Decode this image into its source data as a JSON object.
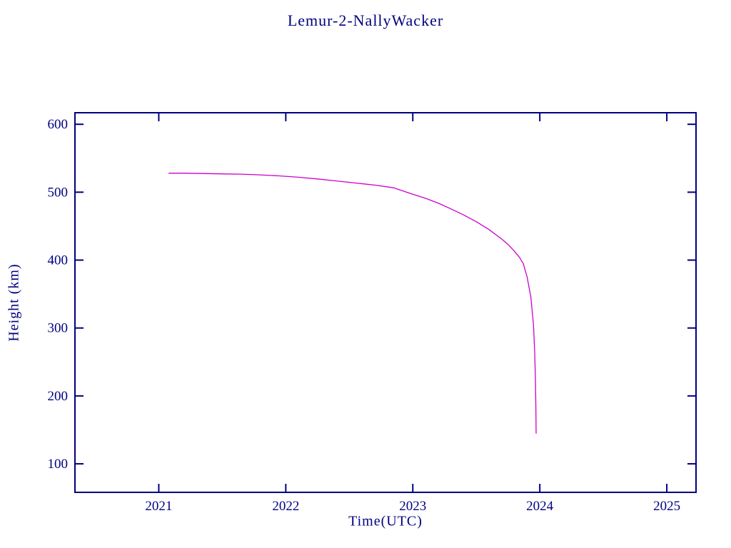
{
  "page": {
    "background_color": "#ffffff"
  },
  "chart_data": {
    "type": "line",
    "title": "Lemur-2-NallyWacker",
    "xlabel": "Time(UTC)",
    "ylabel": "Height (km)",
    "xlim": [
      2020.34,
      2025.23
    ],
    "ylim": [
      58,
      617
    ],
    "xticks": [
      2021,
      2022,
      2023,
      2024,
      2025
    ],
    "yticks": [
      100,
      200,
      300,
      400,
      500,
      600
    ],
    "grid": false,
    "legend": "none",
    "axis_color": "#000080",
    "line_color": "#cc00cc",
    "series": [
      {
        "name": "height_km",
        "x": [
          2021.08,
          2021.2,
          2021.35,
          2021.5,
          2021.65,
          2021.8,
          2021.95,
          2022.1,
          2022.25,
          2022.4,
          2022.55,
          2022.7,
          2022.85,
          2023.0,
          2023.1,
          2023.2,
          2023.3,
          2023.4,
          2023.5,
          2023.6,
          2023.7,
          2023.75,
          2023.8,
          2023.84,
          2023.87,
          2023.9,
          2023.93,
          2023.95,
          2023.96,
          2023.966,
          2023.969,
          2023.971
        ],
        "y": [
          528,
          528,
          527.5,
          527,
          526.5,
          525.5,
          524,
          522,
          519.5,
          516.5,
          513.5,
          510.5,
          506.5,
          497,
          491,
          484,
          475.5,
          466.5,
          456.5,
          445,
          431,
          423,
          413,
          404,
          395,
          375,
          345,
          305,
          265,
          220,
          180,
          145
        ]
      }
    ]
  }
}
